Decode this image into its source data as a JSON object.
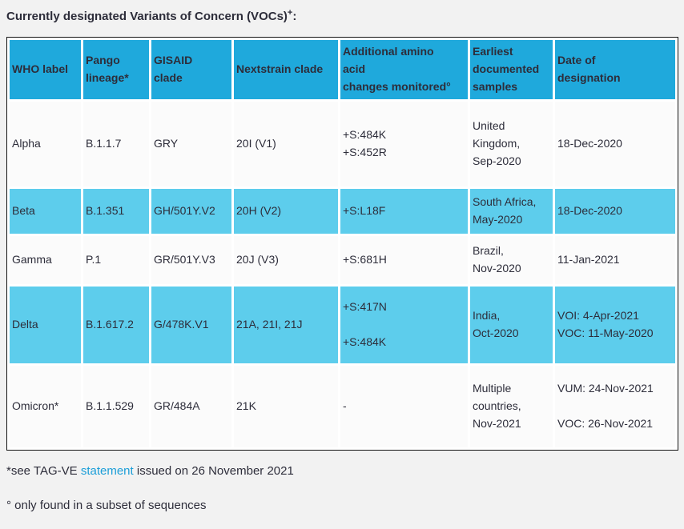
{
  "title": {
    "text": "Currently designated Variants of Concern (VOCs)",
    "superscript": "+",
    "suffix": ":"
  },
  "theme": {
    "header_blue": "#1fa9dc",
    "row_blue": "#5dcdec",
    "row_light": "#fbfbfb",
    "page_background": "#f2f2f2",
    "text_color": "#2d2d3a",
    "link_blue": "#1b9ed8",
    "table_border": "#141414",
    "cell_gap": "#ffffff"
  },
  "table": {
    "headers": [
      "WHO label",
      "Pango\nlineage*",
      "GISAID\nclade",
      "Nextstrain clade",
      "Additional amino\nacid\nchanges monitored°",
      "Earliest\ndocumented\nsamples",
      "Date of\ndesignation"
    ],
    "rows": [
      {
        "cells": [
          "Alpha",
          "B.1.1.7",
          "GRY",
          "20I (V1)",
          "+S:484K\n+S:452R",
          "United\nKingdom,\nSep-2020",
          "18-Dec-2020"
        ]
      },
      {
        "cells": [
          "Beta",
          "B.1.351",
          "GH/501Y.V2",
          "20H (V2)",
          "+S:L18F",
          "South Africa,\nMay-2020",
          "18-Dec-2020"
        ]
      },
      {
        "cells": [
          "Gamma",
          "P.1",
          "GR/501Y.V3",
          "20J (V3)",
          "+S:681H",
          "Brazil,\nNov-2020",
          "11-Jan-2021"
        ]
      },
      {
        "cells": [
          "Delta",
          "B.1.617.2",
          "G/478K.V1",
          "21A, 21I, 21J",
          "+S:417N\n\n+S:484K",
          "India,\nOct-2020",
          "VOI: 4-Apr-2021\nVOC: 11-May-2020"
        ]
      },
      {
        "cells": [
          "Omicron*",
          "B.1.1.529",
          "GR/484A",
          "21K",
          "-",
          "Multiple\ncountries,\nNov-2021",
          "VUM: 24-Nov-2021\n\nVOC: 26-Nov-2021"
        ]
      }
    ]
  },
  "footnotes": {
    "note1_prefix": "*see TAG-VE ",
    "note1_link": "statement",
    "note1_suffix": " issued on 26 November 2021",
    "note2": "° only found in a subset of sequences"
  }
}
